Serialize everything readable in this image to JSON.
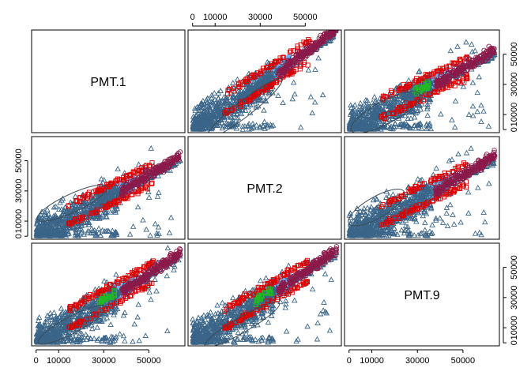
{
  "chart_data": {
    "type": "scatter-matrix",
    "variables": [
      "PMT.1",
      "PMT.2",
      "PMT.9"
    ],
    "axis_range": [
      -2000,
      66000
    ],
    "ticks": [
      0,
      10000,
      30000,
      50000
    ],
    "tick_labels": [
      "0",
      "10000",
      "30000",
      "50000"
    ],
    "axis_placement": {
      "top": [
        1
      ],
      "bottom": [
        0,
        2
      ],
      "left": [
        1
      ],
      "right": [
        0,
        2
      ]
    },
    "markers": {
      "blue_triangle": "#3a6589",
      "red_square": "#dd0000",
      "purple_circle": "#8b1a4a",
      "green_marker": "#22bb22",
      "light_blue_fill": "#74b4ee",
      "dark_ellipse": "#3b4b55"
    },
    "panels": [
      {
        "row": 0,
        "col": 1,
        "slope": 0.93,
        "ellipse": {
          "cx": 23000,
          "cy": 14000,
          "rx": 21000,
          "ry": 5200,
          "angle_deg": 38
        },
        "green": false
      },
      {
        "row": 0,
        "col": 2,
        "slope": 0.72,
        "ellipse": {
          "cx": 16000,
          "cy": 11500,
          "rx": 17000,
          "ry": 7500,
          "angle_deg": 28
        },
        "green": true
      },
      {
        "row": 1,
        "col": 0,
        "slope": 0.72,
        "ellipse": {
          "cx": 16000,
          "cy": 22000,
          "rx": 17000,
          "ry": 6000,
          "angle_deg": 25
        },
        "green": false
      },
      {
        "row": 1,
        "col": 2,
        "slope": 0.72,
        "ellipse": {
          "cx": 12000,
          "cy": 19000,
          "rx": 14000,
          "ry": 7000,
          "angle_deg": 30
        },
        "green": false
      },
      {
        "row": 2,
        "col": 0,
        "slope": 0.82,
        "ellipse": {
          "cx": 16000,
          "cy": 12000,
          "rx": 17000,
          "ry": 5500,
          "angle_deg": 28
        },
        "green": true
      },
      {
        "row": 2,
        "col": 1,
        "slope": 0.85,
        "ellipse": {
          "cx": 22000,
          "cy": 12000,
          "rx": 19000,
          "ry": 5000,
          "angle_deg": 30
        },
        "green": true
      }
    ]
  }
}
